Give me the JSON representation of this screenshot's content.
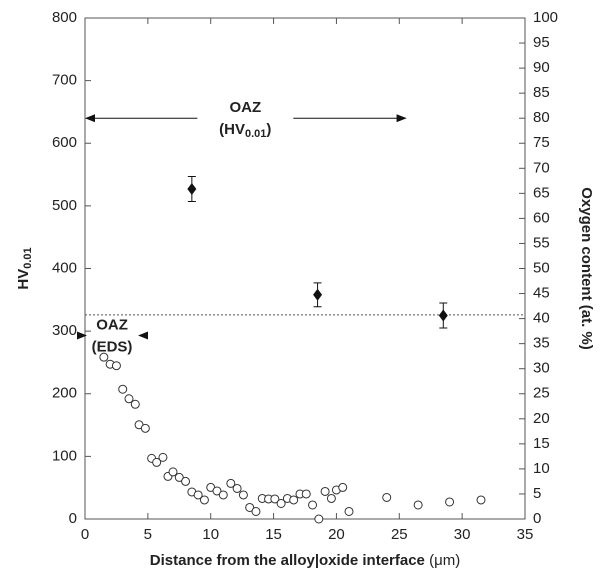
{
  "chart_data": {
    "type": "scatter",
    "x_label": [
      "Distance from the alloy|oxide interface",
      "(μm)"
    ],
    "y_label": {
      "text": "HV",
      "sub": "0.01"
    },
    "y2_label": "Oxygen content (at. %)",
    "xlim": [
      0,
      35
    ],
    "xticks": [
      0,
      5,
      10,
      15,
      20,
      25,
      30,
      35
    ],
    "ylim": [
      0,
      800
    ],
    "yticks": [
      0,
      100,
      200,
      300,
      400,
      500,
      600,
      700,
      800
    ],
    "y2lim": [
      0,
      100
    ],
    "y2ticks": [
      0,
      5,
      10,
      15,
      20,
      25,
      30,
      35,
      40,
      45,
      50,
      55,
      60,
      65,
      70,
      75,
      80,
      85,
      90,
      95,
      100
    ],
    "grid": false,
    "reference_line": 326,
    "annotations": [
      {
        "text": "OAZ",
        "sub_text": {
          "text": "(HV",
          "sub": "0.01",
          "end": ")"
        },
        "x": [
          0,
          25.5
        ],
        "y": 640
      },
      {
        "text": "OAZ",
        "sub_text": {
          "text": "(EDS)"
        },
        "x": [
          0,
          4.3
        ],
        "y": 293
      }
    ],
    "series": [
      {
        "name": "HV",
        "color": "#111",
        "marker": "diamond",
        "x": [
          8.5,
          18.5,
          28.5
        ],
        "values": [
          527,
          358,
          325
        ],
        "errors": [
          20,
          19,
          20
        ]
      },
      {
        "name": "Oxygen",
        "color": "#333",
        "marker": "open-circle",
        "axis": "y2",
        "x": [
          1.5,
          2,
          2.5,
          3,
          3.5,
          4,
          4.3,
          4.8,
          5.3,
          5.7,
          6.2,
          6.6,
          7,
          7.5,
          8,
          8.5,
          9,
          9.5,
          10,
          10.5,
          11,
          11.6,
          12.1,
          12.6,
          13.1,
          13.6,
          14.1,
          14.6,
          15.1,
          15.6,
          16.1,
          16.6,
          17.1,
          17.6,
          18.1,
          18.6,
          19.1,
          19.6,
          20,
          20.5,
          21,
          24,
          26.5,
          29,
          31.5
        ],
        "values": [
          32.3,
          30.9,
          30.6,
          25.9,
          24,
          22.9,
          18.8,
          18.1,
          12.1,
          11.3,
          12.3,
          8.5,
          9.4,
          8.3,
          7.5,
          5.4,
          4.8,
          3.8,
          6.3,
          5.6,
          4.8,
          7.1,
          6.1,
          4.8,
          2.3,
          1.5,
          4.1,
          4,
          4,
          3.1,
          4.1,
          3.8,
          5,
          5,
          2.8,
          0,
          5.5,
          4.1,
          5.8,
          6.3,
          1.5,
          4.3,
          2.8,
          3.4,
          3.8
        ]
      }
    ]
  }
}
